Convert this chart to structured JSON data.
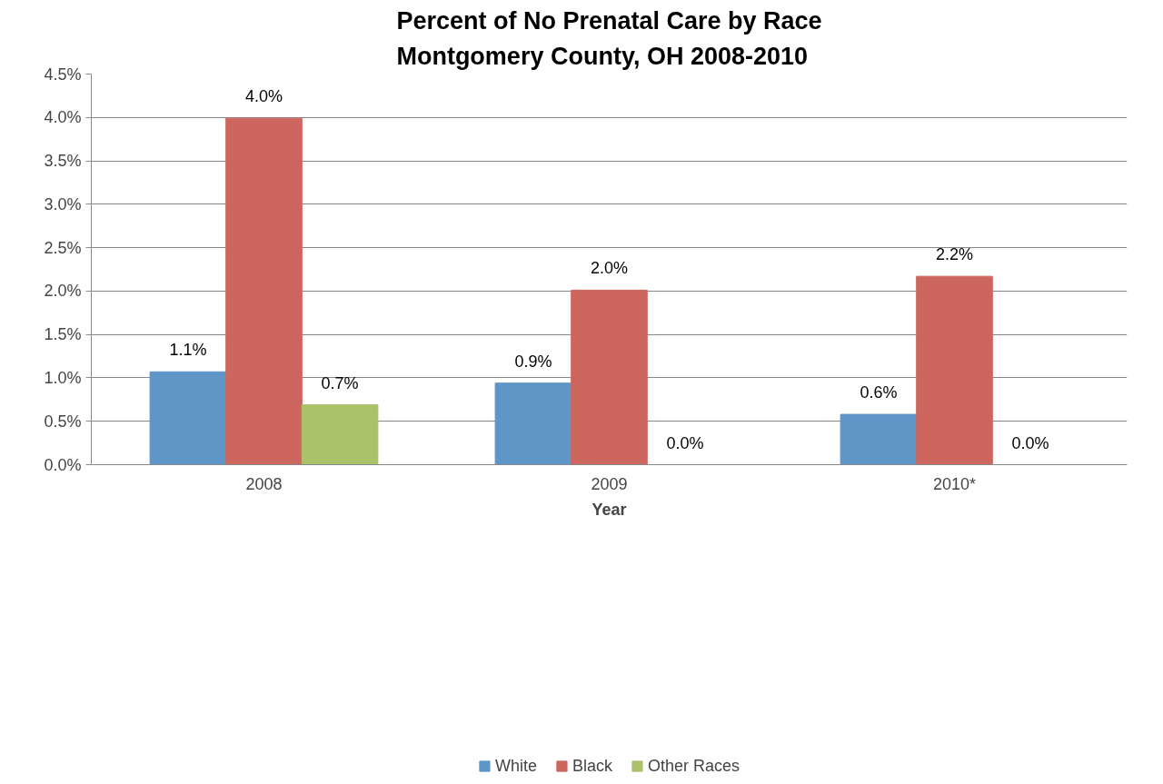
{
  "chart_data": {
    "type": "bar",
    "title": "Percent of No Prenatal Care by Race\nMontgomery County, OH  2008-2010",
    "xlabel": "Year",
    "categories": [
      "2008",
      "2009",
      "2010*"
    ],
    "series": [
      {
        "name": "White",
        "color": "#5f96c8",
        "values": [
          1.07,
          0.94,
          0.58
        ],
        "value_labels": [
          "1.1%",
          "0.9%",
          "0.6%"
        ]
      },
      {
        "name": "Black",
        "color": "#cd665e",
        "values": [
          3.99,
          2.01,
          2.17
        ],
        "value_labels": [
          "4.0%",
          "2.0%",
          "2.2%"
        ]
      },
      {
        "name": "Other Races",
        "color": "#aac36a",
        "values": [
          0.69,
          0,
          0
        ],
        "value_labels": [
          "0.7%",
          "0.0%",
          "0.0%"
        ]
      }
    ],
    "ylim": [
      0,
      4.5
    ],
    "yticks": [
      {
        "value": 0,
        "label": "0.0%"
      },
      {
        "value": 0.5,
        "label": "0.5%"
      },
      {
        "value": 1,
        "label": "1.0%"
      },
      {
        "value": 1.5,
        "label": "1.5%"
      },
      {
        "value": 2,
        "label": "2.0%"
      },
      {
        "value": 2.5,
        "label": "2.5%"
      },
      {
        "value": 3,
        "label": "3.0%"
      },
      {
        "value": 3.5,
        "label": "3.5%"
      },
      {
        "value": 4,
        "label": "4.0%"
      },
      {
        "value": 4.5,
        "label": "4.5%"
      }
    ],
    "grid": "y",
    "legend": "bottom"
  }
}
